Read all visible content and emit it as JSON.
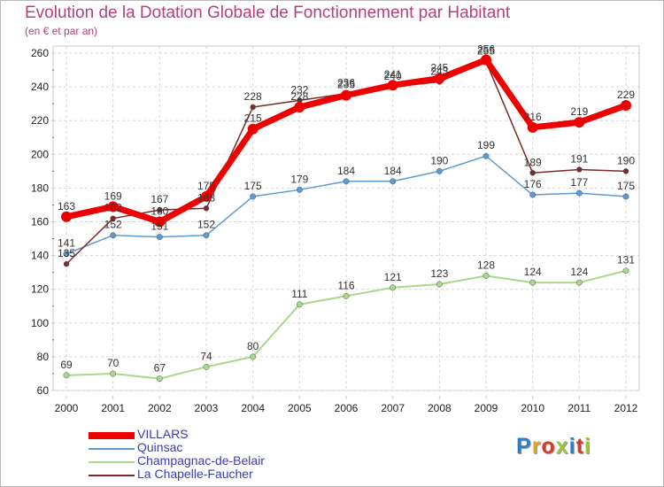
{
  "header": {
    "title": "Evolution de la Dotation Globale de Fonctionnement par Habitant",
    "subtitle": "(en € et par an)"
  },
  "logo": {
    "text": "Proxiti",
    "colors": [
      "#2a7fd0",
      "#e8a219",
      "#d9392a",
      "#9ac43a",
      "#2a7fd0",
      "#d9392a",
      "#9ac43a"
    ]
  },
  "chart_data": {
    "type": "line",
    "title": "Evolution de la Dotation Globale de Fonctionnement par Habitant",
    "subtitle": "(en € et par an)",
    "x": [
      "2000",
      "2001",
      "2002",
      "2003",
      "2004",
      "2005",
      "2006",
      "2007",
      "2008",
      "2009",
      "2010",
      "2011",
      "2012"
    ],
    "ylim": [
      60,
      260
    ],
    "yticks": [
      60,
      80,
      100,
      120,
      140,
      160,
      180,
      200,
      220,
      240,
      260
    ],
    "grid": true,
    "legend_position": "bottom-left",
    "series": [
      {
        "name": "VILLARS",
        "color": "#ee0000",
        "values": [
          163,
          169,
          160,
          175,
          215,
          228,
          235,
          241,
          245,
          256,
          216,
          219,
          229
        ]
      },
      {
        "name": "Quinsac",
        "color": "#5b9bd5",
        "values": [
          141,
          152,
          151,
          152,
          175,
          179,
          184,
          184,
          190,
          199,
          176,
          177,
          175
        ]
      },
      {
        "name": "Champagnac-de-Belair",
        "color": "#a8d88a",
        "values": [
          69,
          70,
          67,
          74,
          80,
          111,
          116,
          121,
          123,
          128,
          124,
          124,
          131
        ]
      },
      {
        "name": "La Chapelle-Faucher",
        "color": "#7b2a2a",
        "values": [
          135,
          162,
          167,
          168,
          228,
          232,
          236,
          240,
          243,
          255,
          189,
          191,
          190
        ]
      }
    ]
  }
}
